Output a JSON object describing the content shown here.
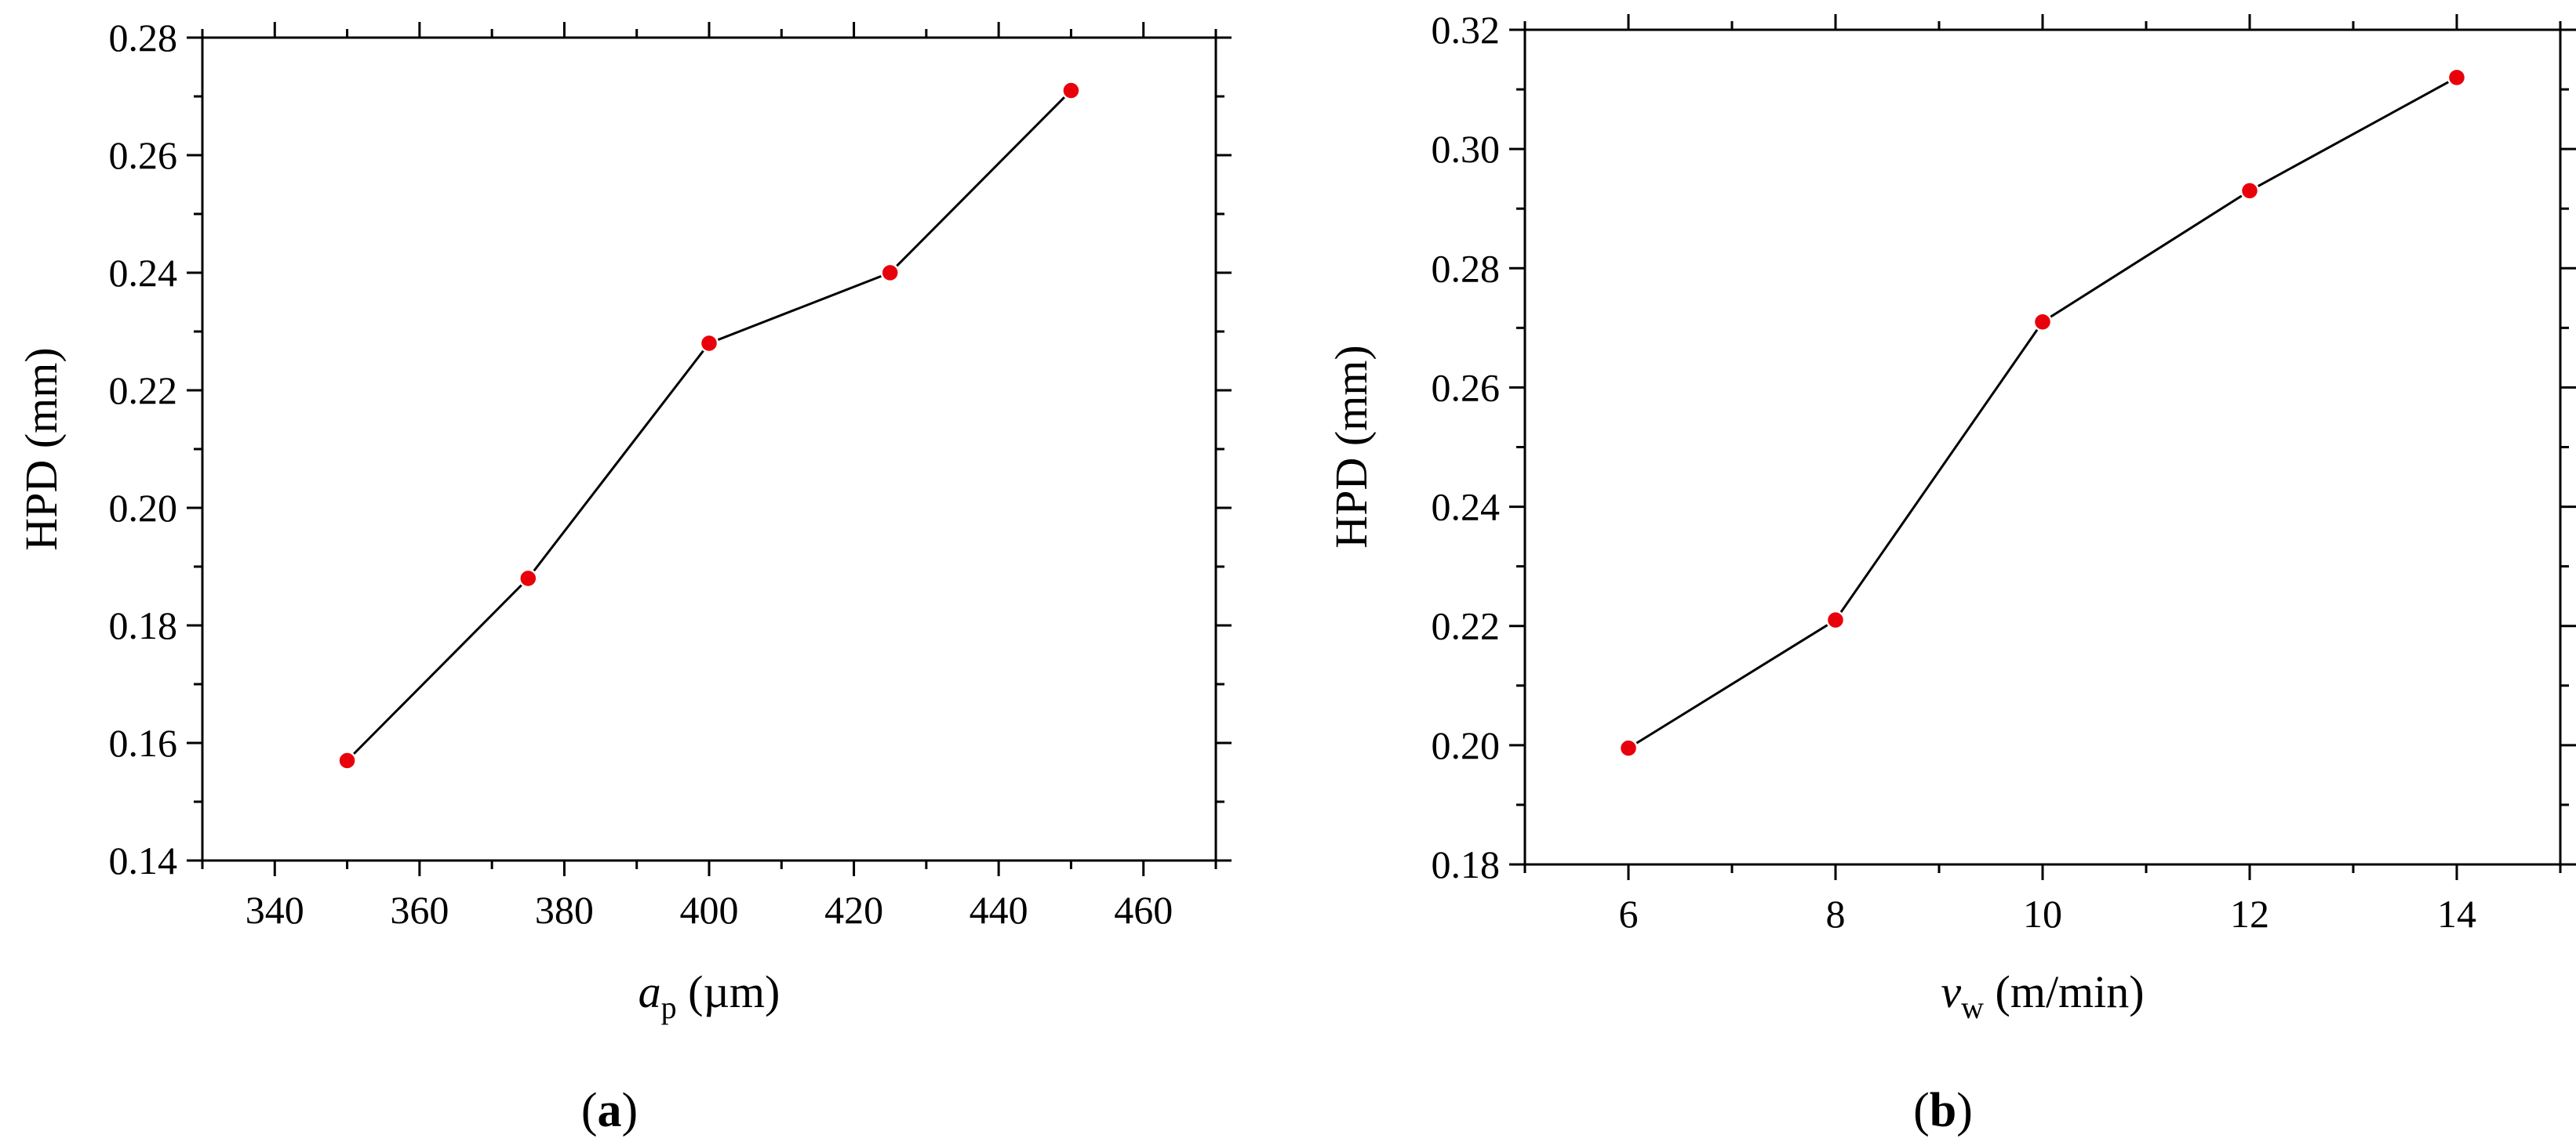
{
  "figure_labels": [
    {
      "open": "(",
      "letter": "a",
      "close": ")"
    },
    {
      "open": "(",
      "letter": "b",
      "close": ")"
    }
  ],
  "chart_data": [
    {
      "type": "line",
      "panel": "a",
      "title": "",
      "xlabel": {
        "var": "a",
        "sub": "p",
        "unit": " (µm)"
      },
      "ylabel": "HPD (mm)",
      "x": [
        350,
        375,
        400,
        425,
        450
      ],
      "series": [
        {
          "name": "HPD",
          "values": [
            0.157,
            0.188,
            0.228,
            0.24,
            0.271
          ]
        }
      ],
      "xlim": [
        330,
        470
      ],
      "ylim": [
        0.14,
        0.28
      ],
      "xticks": [
        340,
        360,
        380,
        400,
        420,
        440,
        460
      ],
      "xtick_labels": [
        "340",
        "360",
        "380",
        "400",
        "420",
        "440",
        "460"
      ],
      "yticks": [
        0.14,
        0.16,
        0.18,
        0.2,
        0.22,
        0.24,
        0.26,
        0.28
      ],
      "ytick_labels": [
        "0.14",
        "0.16",
        "0.18",
        "0.20",
        "0.22",
        "0.24",
        "0.26",
        "0.28"
      ],
      "x_minor_step": 10,
      "y_minor_step": 0.01,
      "grid": false,
      "legend": "none",
      "line_color": "#000000",
      "marker_color": "#e8000b"
    },
    {
      "type": "line",
      "panel": "b",
      "title": "",
      "xlabel": {
        "var": "v",
        "sub": "w",
        "unit": " (m/min)"
      },
      "ylabel": "HPD (mm)",
      "x": [
        6,
        8,
        10,
        12,
        14
      ],
      "series": [
        {
          "name": "HPD",
          "values": [
            0.1995,
            0.221,
            0.271,
            0.293,
            0.312
          ]
        }
      ],
      "xlim": [
        5,
        15
      ],
      "ylim": [
        0.18,
        0.32
      ],
      "xticks": [
        6,
        8,
        10,
        12,
        14
      ],
      "xtick_labels": [
        "6",
        "8",
        "10",
        "12",
        "14"
      ],
      "yticks": [
        0.18,
        0.2,
        0.22,
        0.24,
        0.26,
        0.28,
        0.3,
        0.32
      ],
      "ytick_labels": [
        "0.18",
        "0.20",
        "0.22",
        "0.24",
        "0.26",
        "0.28",
        "0.30",
        "0.32"
      ],
      "x_minor_step": 1,
      "y_minor_step": 0.01,
      "grid": false,
      "legend": "none",
      "line_color": "#000000",
      "marker_color": "#e8000b"
    }
  ]
}
